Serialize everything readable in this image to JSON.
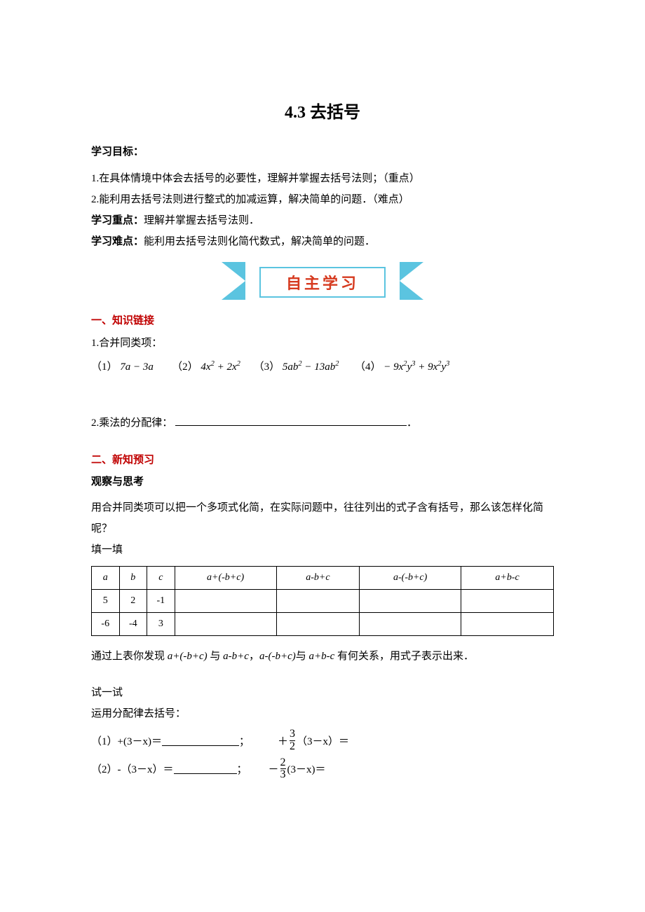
{
  "title": "4.3  去括号",
  "goals_label": "学习目标：",
  "goal1": "1.在具体情境中体会去括号的必要性，理解并掌握去括号法则；（重点）",
  "goal2": "2.能利用去括号法则进行整式的加减运算，解决简单的问题．（难点）",
  "keypoint_label": "学习重点：",
  "keypoint_text": "理解并掌握去括号法则．",
  "hardpoint_label": "学习难点：",
  "hardpoint_text": "能利用去括号法则化简代数式，解决简单的问题．",
  "banner": "自主学习",
  "h1": "一、知识链接",
  "merge_label": "1.合并同类项：",
  "merge_items": {
    "p1": "（1）",
    "e1": "7a − 3a",
    "p2": "（2）",
    "e2_a": "4x",
    "e2_b": " + 2x",
    "p3": "（3）",
    "e3_a": "5ab",
    "e3_b": " − 13ab",
    "p4": "（4）",
    "e4_a": "− 9x",
    "e4_b": "y",
    "e4_c": " + 9x",
    "e4_d": "y"
  },
  "dist_label": "2.乘法的分配律：",
  "h2": "二、新知预习",
  "obs_label": "观察与思考",
  "obs_text": "用合并同类项可以把一个多项式化简，在实际问题中，往往列出的式子含有括号，那么该怎样化简呢？",
  "fill_label": "填一填",
  "table": {
    "headers": [
      "a",
      "b",
      "c",
      "a+(-b+c)",
      "a-b+c",
      "a-(-b+c)",
      "a+b-c"
    ],
    "rows": [
      [
        "5",
        "2",
        "-1",
        "",
        "",
        "",
        ""
      ],
      [
        "-6",
        "-4",
        "3",
        "",
        "",
        "",
        ""
      ]
    ],
    "col_widths": [
      "6%",
      "6%",
      "6%",
      "22%",
      "18%",
      "22%",
      "20%"
    ]
  },
  "relation_text_a": "通过上表你发现 ",
  "relation_expr1": "a+(-b+c)",
  "relation_text_b": " 与 ",
  "relation_expr2": "a-b+c",
  "relation_text_c": "，",
  "relation_expr3": "a-(-b+c)",
  "relation_text_d": "与 ",
  "relation_expr4": "a+b-c",
  "relation_text_e": " 有何关系，用式子表示出来．",
  "try_label": "试一试",
  "try_text": "运用分配律去括号：",
  "eq1_left": "（1）+(3－x)＝",
  "eq1_sep": "；",
  "eq1_right_pre": "＋",
  "eq1_frac_n": "3",
  "eq1_frac_d": "2",
  "eq1_right_post": "（3－x）＝",
  "eq2_left": "（2）-（3－x）＝",
  "eq2_sep": "；",
  "eq2_right_pre": "－",
  "eq2_frac_n": "2",
  "eq2_frac_d": "3",
  "eq2_right_post": "(3－x)＝",
  "colors": {
    "accent_blue": "#5bc4e0",
    "accent_red": "#d63a1f",
    "heading_red": "#c00000"
  }
}
